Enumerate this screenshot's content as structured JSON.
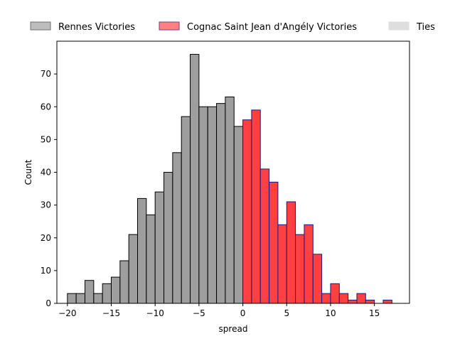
{
  "chart_data": {
    "type": "bar",
    "xlabel": "spread",
    "ylabel": "Count",
    "xlim": [
      -21.2,
      19.0
    ],
    "ylim": [
      0,
      80
    ],
    "xticks": [
      -20,
      -15,
      -10,
      -5,
      0,
      5,
      10,
      15
    ],
    "yticks": [
      0,
      10,
      20,
      30,
      40,
      50,
      60,
      70
    ],
    "bin_width": 1,
    "legend": {
      "placement": "top, outside plot, single row",
      "entries": [
        {
          "label": "Rennes Victories",
          "color": "#bdbdbd",
          "edge": "#6f6f6f"
        },
        {
          "label": "Cognac Saint Jean d'Angély Victories",
          "color": "#ff8080",
          "edge": "#6f3f8f"
        },
        {
          "label": "Ties",
          "color": "#dedede",
          "edge": "#dedede"
        }
      ]
    },
    "series": [
      {
        "name": "Rennes Victories",
        "color": "#9e9e9e",
        "edge": "#000000",
        "bins": [
          {
            "x": -19.5,
            "count": 3
          },
          {
            "x": -18.5,
            "count": 3
          },
          {
            "x": -17.5,
            "count": 7
          },
          {
            "x": -16.5,
            "count": 3
          },
          {
            "x": -15.5,
            "count": 6
          },
          {
            "x": -14.5,
            "count": 8
          },
          {
            "x": -13.5,
            "count": 13
          },
          {
            "x": -12.5,
            "count": 21
          },
          {
            "x": -11.5,
            "count": 32
          },
          {
            "x": -10.5,
            "count": 27
          },
          {
            "x": -9.5,
            "count": 34
          },
          {
            "x": -8.5,
            "count": 40
          },
          {
            "x": -7.5,
            "count": 46
          },
          {
            "x": -6.5,
            "count": 57
          },
          {
            "x": -5.5,
            "count": 76
          },
          {
            "x": -4.5,
            "count": 60
          },
          {
            "x": -3.5,
            "count": 60
          },
          {
            "x": -2.5,
            "count": 61
          },
          {
            "x": -1.5,
            "count": 63
          },
          {
            "x": -0.5,
            "count": 54
          }
        ]
      },
      {
        "name": "Cognac Saint Jean d'Angély Victories",
        "color": "#ff4040",
        "edge": "#1a1a7a",
        "bins": [
          {
            "x": 0.5,
            "count": 56
          },
          {
            "x": 1.5,
            "count": 59
          },
          {
            "x": 2.5,
            "count": 41
          },
          {
            "x": 3.5,
            "count": 37
          },
          {
            "x": 4.5,
            "count": 24
          },
          {
            "x": 5.5,
            "count": 31
          },
          {
            "x": 6.5,
            "count": 21
          },
          {
            "x": 7.5,
            "count": 24
          },
          {
            "x": 8.5,
            "count": 15
          },
          {
            "x": 9.5,
            "count": 3
          },
          {
            "x": 10.5,
            "count": 6
          },
          {
            "x": 11.5,
            "count": 3
          },
          {
            "x": 12.5,
            "count": 1
          },
          {
            "x": 13.5,
            "count": 3
          },
          {
            "x": 14.5,
            "count": 1
          },
          {
            "x": 16.5,
            "count": 1
          }
        ]
      },
      {
        "name": "Ties",
        "color": "#dedede",
        "edge": "#dedede",
        "bins": []
      }
    ]
  }
}
